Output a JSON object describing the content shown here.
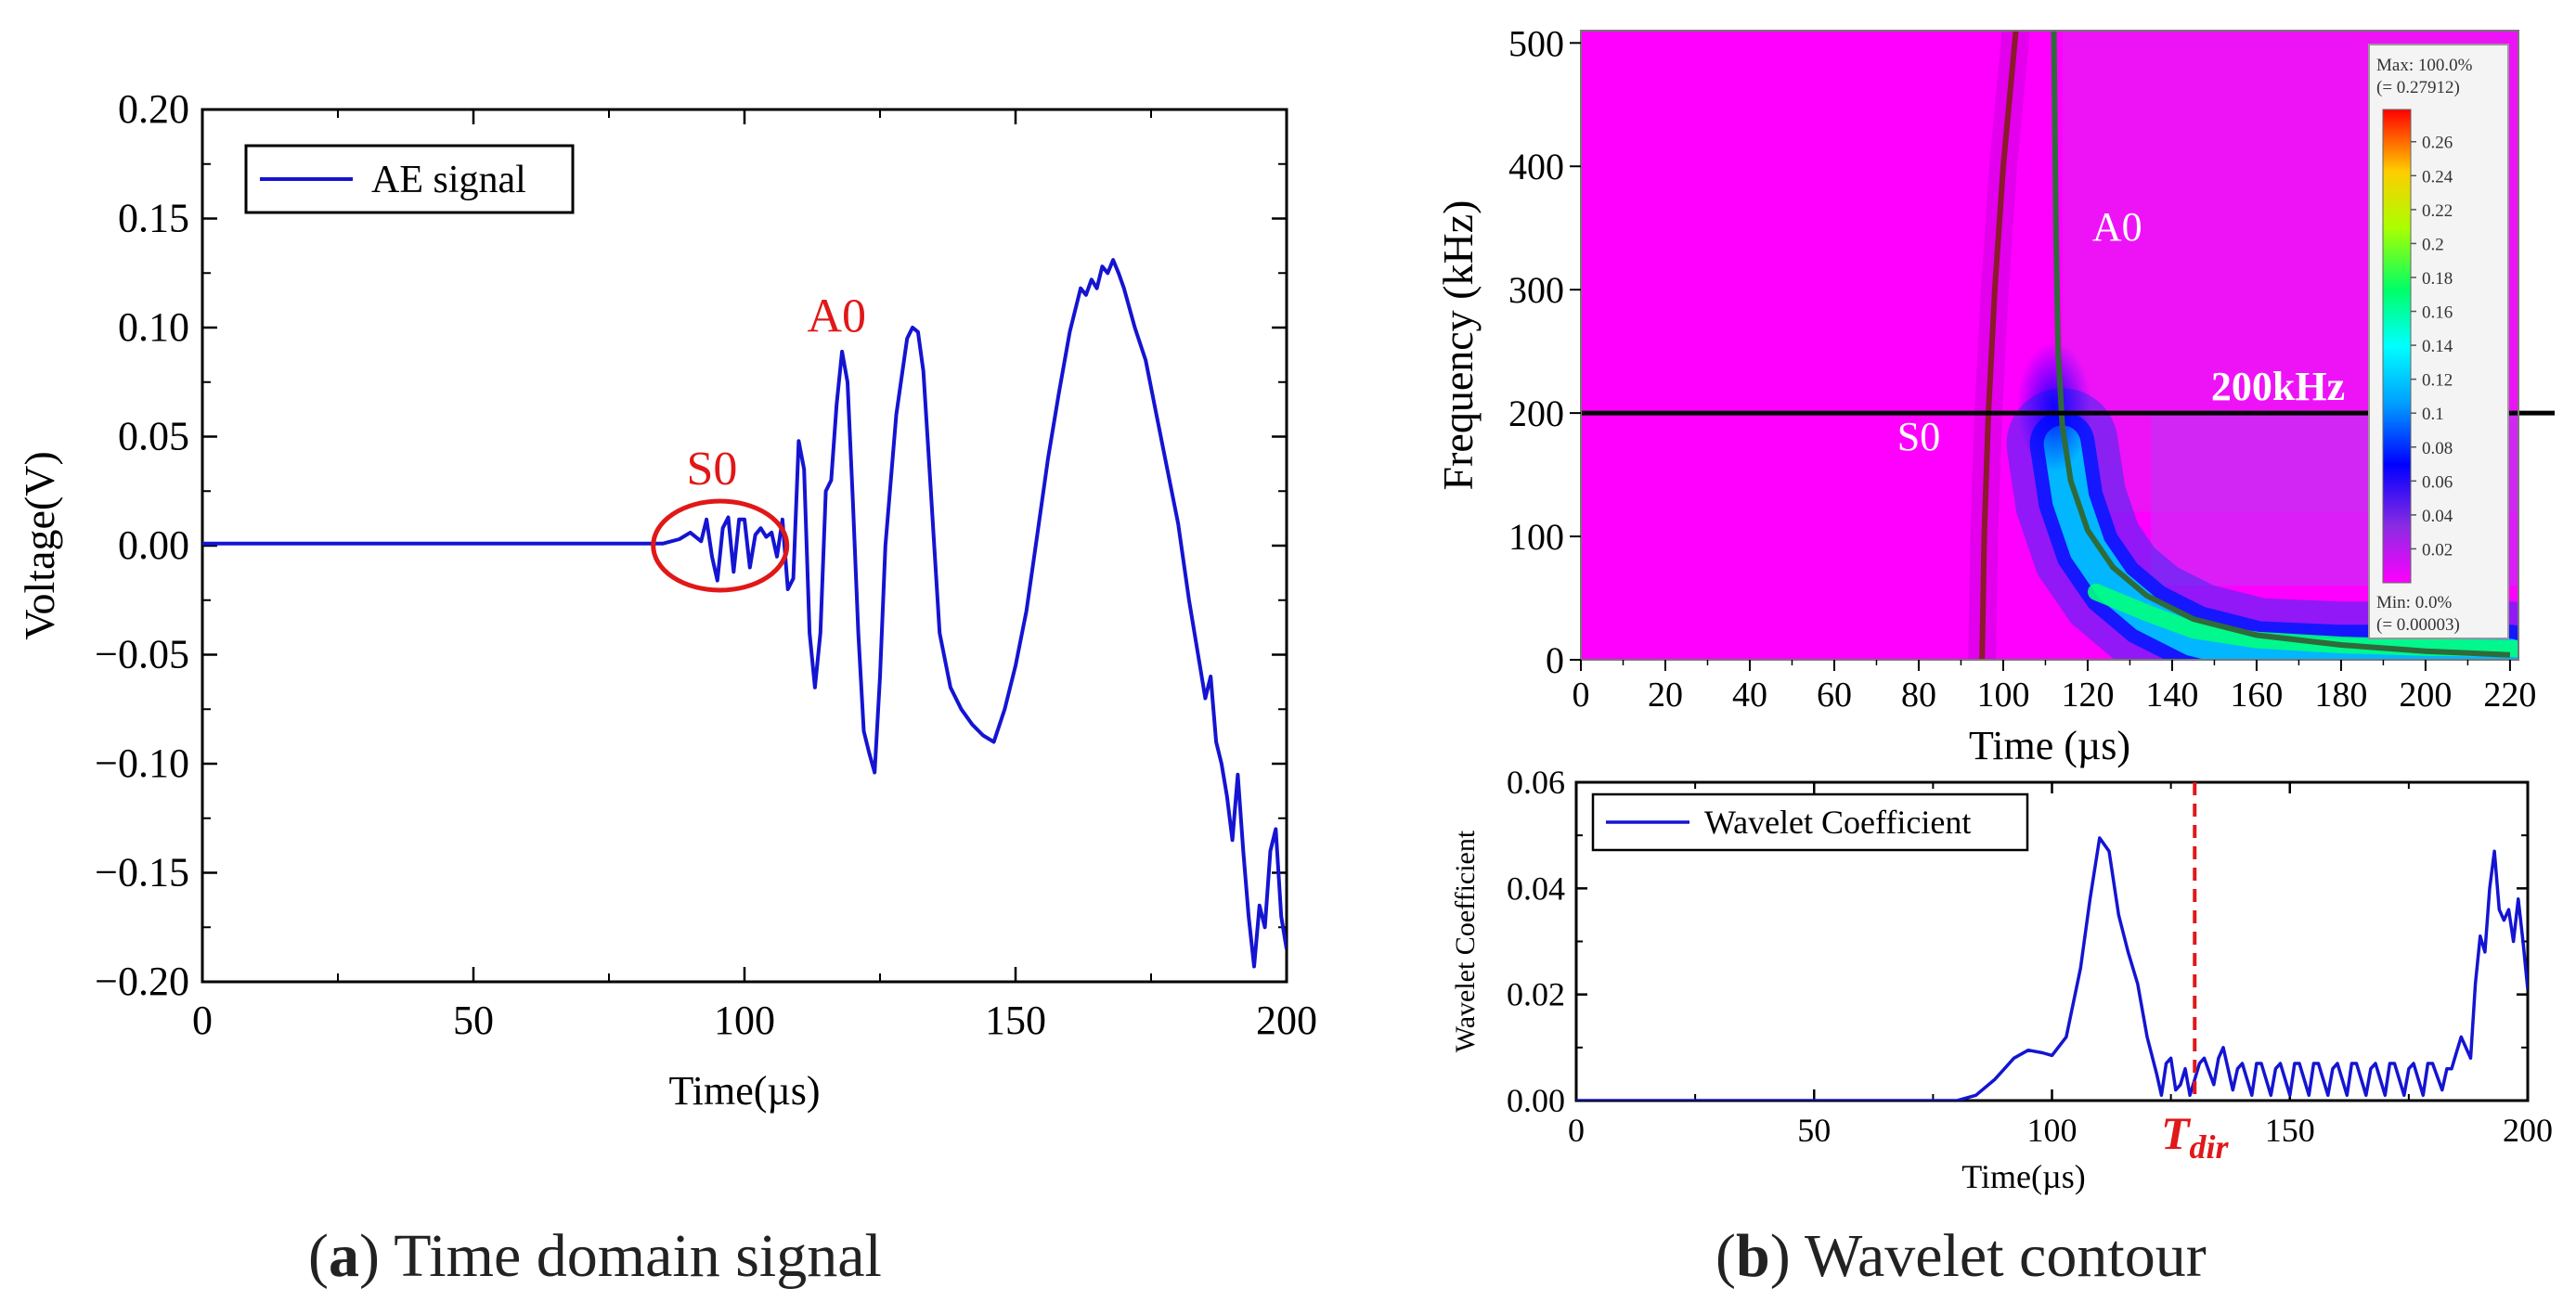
{
  "colors": {
    "signal": "#1414d2",
    "annotation": "#e01818",
    "axis": "#000000",
    "heatmap_bg": "#ff00ff",
    "s0_curve": "#8b1a2a",
    "a0_curve": "#2f6b3a"
  },
  "chart_data": [
    {
      "type": "line",
      "title": "",
      "xlabel": "Time(µs)",
      "ylabel": "Voltage(V)",
      "xlim": [
        0,
        200
      ],
      "ylim": [
        -0.2,
        0.2
      ],
      "xticks": [
        "0",
        "50",
        "100",
        "150",
        "200"
      ],
      "yticks": [
        "0.20",
        "0.15",
        "0.10",
        "0.05",
        "0.00",
        "−0.05",
        "−0.10",
        "−0.15",
        "−0.20"
      ],
      "legend": {
        "label": "AE signal",
        "position": "top-left"
      },
      "series": [
        {
          "name": "AE signal",
          "x": [
            0,
            85,
            88,
            90,
            92,
            93,
            94,
            95,
            96,
            97,
            98,
            99,
            100,
            101,
            102,
            103,
            104,
            105,
            106,
            107,
            108,
            109,
            110,
            111,
            112,
            113,
            114,
            115,
            116,
            117,
            118,
            119,
            120,
            121,
            122,
            123,
            124,
            125,
            126,
            128,
            130,
            131,
            132,
            133,
            134,
            135,
            136,
            138,
            140,
            142,
            144,
            146,
            148,
            150,
            152,
            154,
            156,
            158,
            160,
            162,
            163,
            164,
            165,
            166,
            167,
            168,
            169,
            170,
            172,
            174,
            176,
            178,
            180,
            182,
            184,
            185,
            186,
            187,
            188,
            189,
            190,
            191,
            192,
            193,
            194,
            195,
            196,
            197,
            198,
            199,
            200
          ],
          "y": [
            0.001,
            0.001,
            0.003,
            0.006,
            0.002,
            0.012,
            -0.005,
            -0.016,
            0.008,
            0.013,
            -0.012,
            0.012,
            0.012,
            -0.01,
            0.005,
            0.008,
            0.004,
            0.006,
            -0.005,
            0.012,
            -0.02,
            -0.015,
            0.048,
            0.035,
            -0.04,
            -0.065,
            -0.04,
            0.025,
            0.03,
            0.065,
            0.089,
            0.075,
            0.02,
            -0.04,
            -0.085,
            -0.095,
            -0.104,
            -0.06,
            0.0,
            0.06,
            0.095,
            0.1,
            0.098,
            0.08,
            0.04,
            0.0,
            -0.04,
            -0.065,
            -0.075,
            -0.082,
            -0.087,
            -0.09,
            -0.075,
            -0.055,
            -0.03,
            0.005,
            0.04,
            0.07,
            0.098,
            0.118,
            0.115,
            0.122,
            0.118,
            0.128,
            0.125,
            0.131,
            0.125,
            0.118,
            0.1,
            0.085,
            0.06,
            0.035,
            0.01,
            -0.025,
            -0.055,
            -0.07,
            -0.06,
            -0.09,
            -0.1,
            -0.115,
            -0.135,
            -0.105,
            -0.14,
            -0.17,
            -0.193,
            -0.165,
            -0.175,
            -0.14,
            -0.13,
            -0.17,
            -0.185
          ]
        }
      ],
      "annotations": [
        {
          "text": "S0",
          "x": 94,
          "y": 0.035
        },
        {
          "text": "A0",
          "x": 117,
          "y": 0.105
        }
      ]
    },
    {
      "type": "heatmap",
      "xlabel": "Time (µs)",
      "ylabel": "Frequency (kHz)",
      "xlim": [
        0,
        222
      ],
      "ylim": [
        0,
        510
      ],
      "xticks": [
        "0",
        "20",
        "40",
        "60",
        "80",
        "100",
        "120",
        "140",
        "160",
        "180",
        "200",
        "220"
      ],
      "yticks": [
        "500",
        "400",
        "300",
        "200",
        "100",
        "0"
      ],
      "hline": {
        "y": 200,
        "label": "200kHz"
      },
      "mode_labels": [
        {
          "text": "S0",
          "x": 80,
          "y": 170
        },
        {
          "text": "A0",
          "x": 127,
          "y": 340
        }
      ],
      "s0_curve": {
        "x": [
          95,
          95.5,
          96.5,
          98,
          100,
          103
        ],
        "y": [
          0,
          100,
          200,
          300,
          400,
          510
        ]
      },
      "a0_curve": {
        "x": [
          112,
          112.5,
          113,
          114,
          116,
          120,
          126,
          134,
          145,
          160,
          180,
          200,
          220
        ],
        "y": [
          510,
          350,
          250,
          190,
          145,
          105,
          75,
          52,
          33,
          20,
          12,
          7,
          4
        ]
      },
      "colorbar": {
        "max_label": "Max: 100.0%",
        "max_value": "(= 0.27912)",
        "min_label": "Min: 0.0%",
        "min_value": "(= 0.00003)",
        "ticks": [
          "0.26",
          "0.24",
          "0.22",
          "0.2",
          "0.18",
          "0.16",
          "0.14",
          "0.12",
          "0.1",
          "0.08",
          "0.06",
          "0.04",
          "0.02"
        ],
        "range": [
          0,
          0.279
        ]
      }
    },
    {
      "type": "line",
      "xlabel": "Time(µs)",
      "ylabel": "Wavelet Coefficient",
      "xlim": [
        0,
        200
      ],
      "ylim": [
        0,
        0.06
      ],
      "xticks": [
        "0",
        "50",
        "100",
        "150",
        "200"
      ],
      "yticks": [
        "0.06",
        "0.04",
        "0.02",
        "0.00"
      ],
      "legend": {
        "label": "Wavelet Coefficient",
        "position": "top-left"
      },
      "vline": {
        "x": 130,
        "label": "T",
        "label_sub": "dir"
      },
      "series": [
        {
          "name": "Wavelet Coefficient",
          "x": [
            0,
            80,
            84,
            88,
            92,
            95,
            98,
            100,
            103,
            106,
            108,
            110,
            112,
            114,
            116,
            118,
            120,
            122,
            123,
            124,
            125,
            126,
            127,
            128,
            129,
            130,
            131,
            132,
            134,
            135,
            136,
            138,
            139,
            140,
            142,
            143,
            144,
            146,
            147,
            148,
            150,
            151,
            152,
            154,
            155,
            156,
            158,
            159,
            160,
            162,
            163,
            164,
            166,
            167,
            168,
            170,
            171,
            172,
            174,
            175,
            176,
            178,
            179,
            180,
            182,
            183,
            184,
            185,
            186,
            188,
            189,
            190,
            191,
            192,
            193,
            194,
            195,
            196,
            197,
            198,
            199,
            200
          ],
          "y": [
            0,
            0,
            0.001,
            0.004,
            0.008,
            0.0095,
            0.009,
            0.0085,
            0.012,
            0.025,
            0.038,
            0.0495,
            0.047,
            0.035,
            0.028,
            0.022,
            0.012,
            0.005,
            0.001,
            0.007,
            0.008,
            0.002,
            0.003,
            0.006,
            0.001,
            0.004,
            0.007,
            0.008,
            0.003,
            0.008,
            0.01,
            0.002,
            0.006,
            0.007,
            0.001,
            0.007,
            0.007,
            0.001,
            0.006,
            0.007,
            0.001,
            0.007,
            0.007,
            0.001,
            0.007,
            0.007,
            0.001,
            0.006,
            0.007,
            0.001,
            0.007,
            0.007,
            0.001,
            0.006,
            0.007,
            0.001,
            0.007,
            0.007,
            0.001,
            0.006,
            0.007,
            0.001,
            0.007,
            0.007,
            0.002,
            0.006,
            0.006,
            0.009,
            0.012,
            0.008,
            0.022,
            0.031,
            0.028,
            0.04,
            0.047,
            0.036,
            0.034,
            0.036,
            0.03,
            0.038,
            0.03,
            0.021
          ]
        }
      ]
    }
  ],
  "captions": [
    {
      "letter": "a",
      "text": " Time domain signal"
    },
    {
      "letter": "b",
      "text": " Wavelet contour"
    }
  ]
}
